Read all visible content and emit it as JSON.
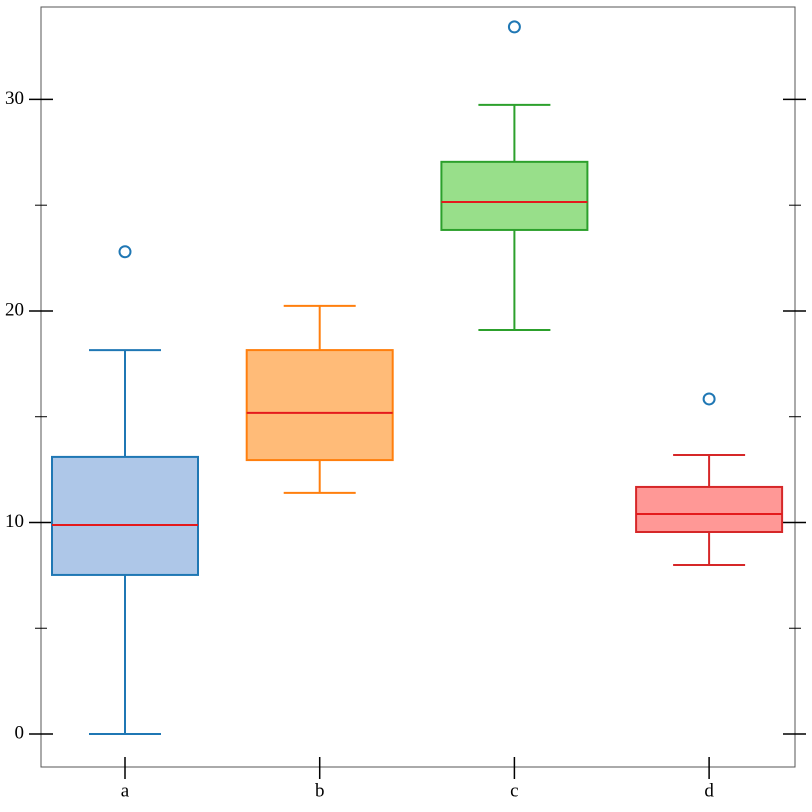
{
  "chart_data": {
    "type": "box",
    "categories": [
      "a",
      "b",
      "c",
      "d"
    ],
    "whislo": [
      0,
      11.4,
      19.1,
      7.99
    ],
    "q1": [
      7.52,
      12.95,
      23.83,
      9.55
    ],
    "med": [
      9.88,
      15.18,
      25.15,
      10.4
    ],
    "q3": [
      13.1,
      18.15,
      27.05,
      11.68
    ],
    "whishi": [
      18.15,
      20.24,
      29.74,
      13.19
    ],
    "fliers": [
      [
        22.8
      ],
      [],
      [
        33.43
      ],
      [
        15.84
      ]
    ],
    "fill_colors": [
      "#aec7e8",
      "#ffbb78",
      "#98df8a",
      "#ff9896"
    ],
    "edge_colors": [
      "#1f77b4",
      "#ff7f0e",
      "#2ca02c",
      "#d62728"
    ],
    "median_color": "#e41a1c",
    "flier_color": "#1f77b4",
    "ylim": [
      -1.56,
      34.37
    ],
    "yticks": [
      0,
      10,
      20,
      30
    ],
    "minor_yticks": [
      5,
      15,
      25
    ],
    "mirror_ticks": true
  }
}
